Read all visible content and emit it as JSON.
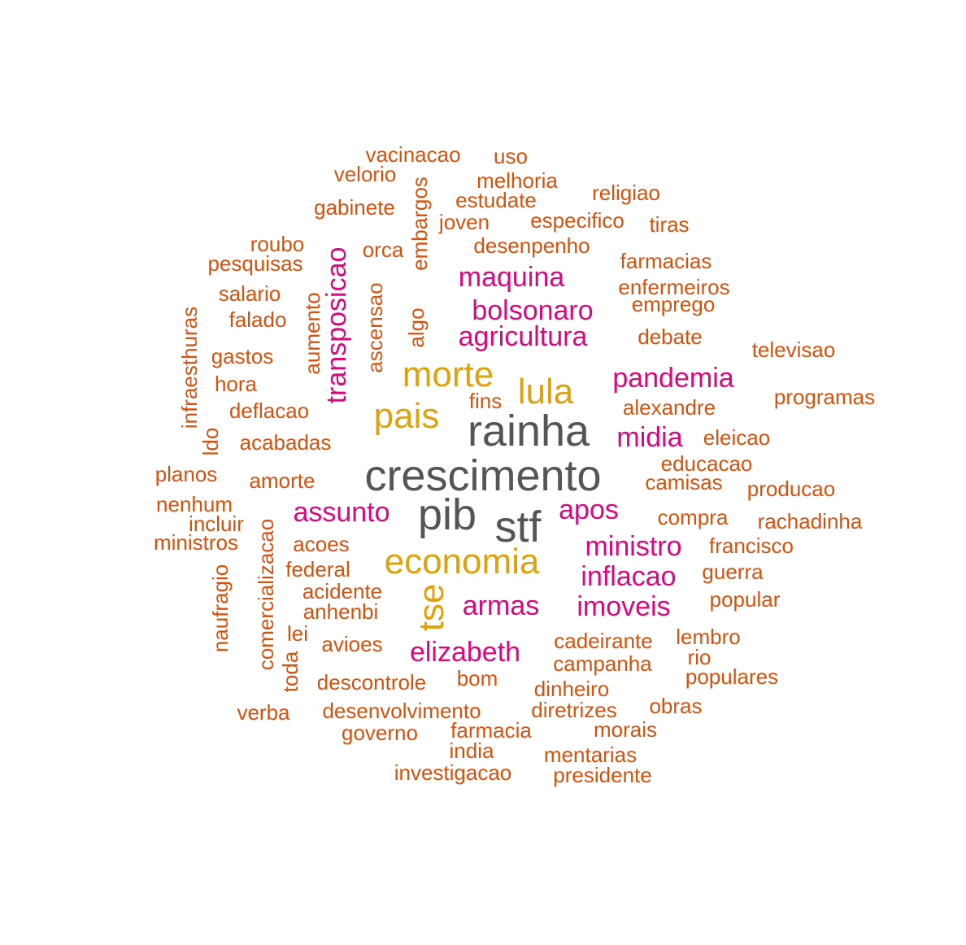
{
  "words": [
    {
      "text": "crescimento",
      "tier": 0
    },
    {
      "text": "rainha",
      "tier": 0
    },
    {
      "text": "pib",
      "tier": 0
    },
    {
      "text": "stf",
      "tier": 0
    },
    {
      "text": "morte",
      "tier": 1
    },
    {
      "text": "lula",
      "tier": 1
    },
    {
      "text": "pais",
      "tier": 1
    },
    {
      "text": "economia",
      "tier": 1
    },
    {
      "text": "tse",
      "tier": 1,
      "vertical": true
    },
    {
      "text": "maquina",
      "tier": 2
    },
    {
      "text": "bolsonaro",
      "tier": 2
    },
    {
      "text": "agricultura",
      "tier": 2
    },
    {
      "text": "pandemia",
      "tier": 2
    },
    {
      "text": "midia",
      "tier": 2
    },
    {
      "text": "transposicao",
      "tier": 2,
      "vertical": true
    },
    {
      "text": "assunto",
      "tier": 2
    },
    {
      "text": "apos",
      "tier": 2
    },
    {
      "text": "ministro",
      "tier": 2
    },
    {
      "text": "inflacao",
      "tier": 2
    },
    {
      "text": "imoveis",
      "tier": 2
    },
    {
      "text": "armas",
      "tier": 2
    },
    {
      "text": "elizabeth",
      "tier": 2
    },
    {
      "text": "vacinacao",
      "tier": 3
    },
    {
      "text": "uso",
      "tier": 3
    },
    {
      "text": "velorio",
      "tier": 3
    },
    {
      "text": "melhoria",
      "tier": 3
    },
    {
      "text": "embargos",
      "tier": 3,
      "vertical": true
    },
    {
      "text": "religiao",
      "tier": 3
    },
    {
      "text": "estudate",
      "tier": 3
    },
    {
      "text": "gabinete",
      "tier": 3
    },
    {
      "text": "joven",
      "tier": 3
    },
    {
      "text": "especifico",
      "tier": 3
    },
    {
      "text": "tiras",
      "tier": 3
    },
    {
      "text": "roubo",
      "tier": 3
    },
    {
      "text": "orca",
      "tier": 3
    },
    {
      "text": "desenpenho",
      "tier": 3
    },
    {
      "text": "pesquisas",
      "tier": 3
    },
    {
      "text": "farmacias",
      "tier": 3
    },
    {
      "text": "salario",
      "tier": 3
    },
    {
      "text": "ascensao",
      "tier": 3,
      "vertical": true
    },
    {
      "text": "enfermeiros",
      "tier": 3
    },
    {
      "text": "emprego",
      "tier": 3
    },
    {
      "text": "aumento",
      "tier": 3,
      "vertical": true
    },
    {
      "text": "falado",
      "tier": 3
    },
    {
      "text": "infraesthuras",
      "tier": 3,
      "vertical": true
    },
    {
      "text": "algo",
      "tier": 3,
      "vertical": true
    },
    {
      "text": "debate",
      "tier": 3
    },
    {
      "text": "televisao",
      "tier": 3
    },
    {
      "text": "gastos",
      "tier": 3
    },
    {
      "text": "hora",
      "tier": 3
    },
    {
      "text": "programas",
      "tier": 3
    },
    {
      "text": "fins",
      "tier": 3
    },
    {
      "text": "alexandre",
      "tier": 3
    },
    {
      "text": "deflacao",
      "tier": 3
    },
    {
      "text": "ldo",
      "tier": 3,
      "vertical": true
    },
    {
      "text": "acabadas",
      "tier": 3
    },
    {
      "text": "eleicao",
      "tier": 3
    },
    {
      "text": "educacao",
      "tier": 3
    },
    {
      "text": "planos",
      "tier": 3
    },
    {
      "text": "amorte",
      "tier": 3
    },
    {
      "text": "camisas",
      "tier": 3
    },
    {
      "text": "producao",
      "tier": 3
    },
    {
      "text": "nenhum",
      "tier": 3
    },
    {
      "text": "incluir",
      "tier": 3
    },
    {
      "text": "compra",
      "tier": 3
    },
    {
      "text": "rachadinha",
      "tier": 3
    },
    {
      "text": "ministros",
      "tier": 3
    },
    {
      "text": "comercializacao",
      "tier": 3,
      "vertical": true
    },
    {
      "text": "acoes",
      "tier": 3
    },
    {
      "text": "francisco",
      "tier": 3
    },
    {
      "text": "federal",
      "tier": 3
    },
    {
      "text": "guerra",
      "tier": 3
    },
    {
      "text": "naufragio",
      "tier": 3,
      "vertical": true
    },
    {
      "text": "acidente",
      "tier": 3
    },
    {
      "text": "anhenbi",
      "tier": 3
    },
    {
      "text": "popular",
      "tier": 3
    },
    {
      "text": "lei",
      "tier": 3
    },
    {
      "text": "cadeirante",
      "tier": 3
    },
    {
      "text": "lembro",
      "tier": 3
    },
    {
      "text": "avioes",
      "tier": 3
    },
    {
      "text": "rio",
      "tier": 3
    },
    {
      "text": "toda",
      "tier": 3,
      "vertical": true
    },
    {
      "text": "campanha",
      "tier": 3
    },
    {
      "text": "bom",
      "tier": 3
    },
    {
      "text": "populares",
      "tier": 3
    },
    {
      "text": "descontrole",
      "tier": 3
    },
    {
      "text": "dinheiro",
      "tier": 3
    },
    {
      "text": "obras",
      "tier": 3
    },
    {
      "text": "verba",
      "tier": 3
    },
    {
      "text": "desenvolvimento",
      "tier": 3
    },
    {
      "text": "diretrizes",
      "tier": 3
    },
    {
      "text": "morais",
      "tier": 3
    },
    {
      "text": "governo",
      "tier": 3
    },
    {
      "text": "farmacia",
      "tier": 3
    },
    {
      "text": "india",
      "tier": 3
    },
    {
      "text": "mentarias",
      "tier": 3
    },
    {
      "text": "investigacao",
      "tier": 3
    },
    {
      "text": "presidente",
      "tier": 3
    }
  ],
  "colors": {
    "tier0": "#555559",
    "tier1": "#DDA20E",
    "tier2": "#D9087E",
    "tier3": "#D5520E"
  }
}
